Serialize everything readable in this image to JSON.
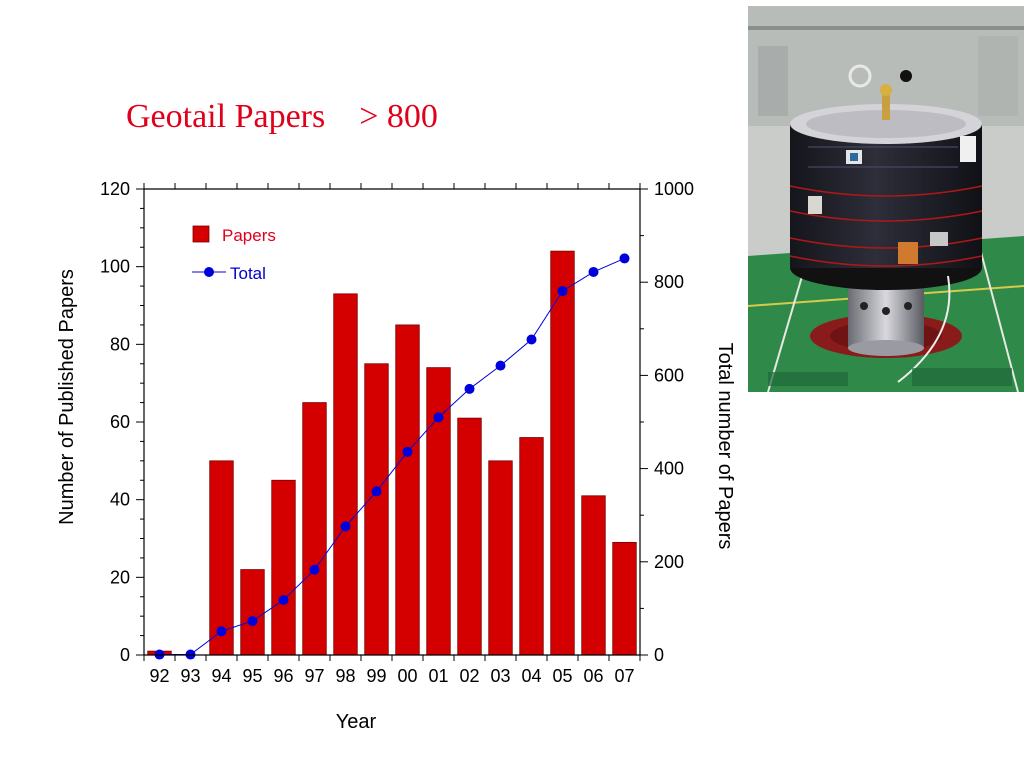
{
  "slide": {
    "title": "Geotail Papers    > 800"
  },
  "colors": {
    "bar": "#d40000",
    "bar_edge": "#7a0000",
    "line": "#0000dd",
    "title": "#e0001b"
  },
  "chart_data": {
    "type": "bar+line",
    "title": "",
    "xlabel": "Year",
    "ylabel": "Number of Published Papers",
    "y2label": "Total number of Papers",
    "categories": [
      "92",
      "93",
      "94",
      "95",
      "96",
      "97",
      "98",
      "99",
      "00",
      "01",
      "02",
      "03",
      "04",
      "05",
      "06",
      "07"
    ],
    "ylim": [
      0,
      120
    ],
    "y2lim": [
      0,
      1000
    ],
    "yticks": [
      "0",
      "20",
      "40",
      "60",
      "80",
      "100",
      "120"
    ],
    "y2ticks": [
      "0",
      "200",
      "400",
      "600",
      "800",
      "1000"
    ],
    "legend": {
      "placement": "top-left",
      "entries": [
        "Papers",
        "Total"
      ]
    },
    "grid": false,
    "series": [
      {
        "name": "Papers",
        "type": "bar",
        "axis": "left",
        "values": [
          1,
          0,
          50,
          22,
          45,
          65,
          93,
          75,
          85,
          74,
          61,
          50,
          56,
          104,
          41,
          29
        ]
      },
      {
        "name": "Total",
        "type": "line",
        "axis": "right",
        "values": [
          1,
          1,
          51,
          73,
          118,
          183,
          276,
          351,
          436,
          510,
          571,
          621,
          677,
          781,
          822,
          851
        ]
      }
    ]
  },
  "photo": {
    "caption_left": "",
    "caption_right": ""
  }
}
